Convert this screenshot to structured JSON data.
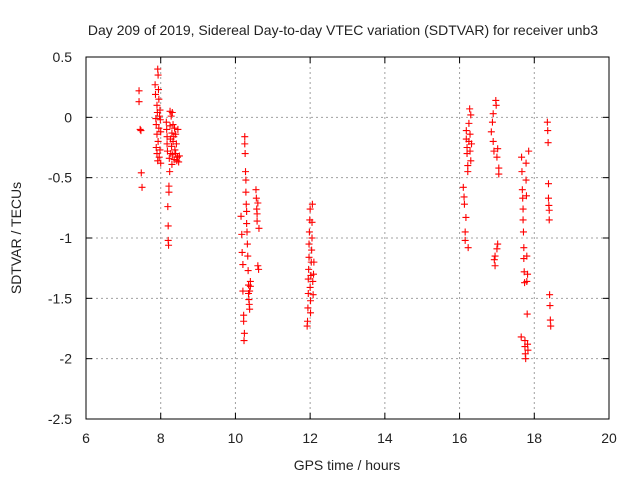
{
  "chart_data": {
    "type": "scatter",
    "title": "Day 209 of 2019, Sidereal Day-to-day VTEC variation (SDTVAR) for receiver unb3",
    "xlabel": "GPS time / hours",
    "ylabel": "SDTVAR / TECUs",
    "xlim": [
      6,
      20
    ],
    "ylim": [
      -2.5,
      0.5
    ],
    "xticks": [
      6,
      8,
      10,
      12,
      14,
      16,
      18,
      20
    ],
    "xtick_labels": [
      "6",
      "8",
      "10",
      "12",
      "14",
      "16",
      "18",
      "20"
    ],
    "yticks": [
      0.5,
      0,
      -0.5,
      -1,
      -1.5,
      -2,
      -2.5
    ],
    "ytick_labels": [
      "0.5",
      "0",
      "-0.5",
      "-1",
      "-1.5",
      "-2",
      "-2.5"
    ],
    "grid": true,
    "marker": "plus",
    "color": "#ff0000",
    "series": [
      {
        "name": "SDTVAR",
        "x": [
          7.42,
          7.42,
          7.45,
          7.47,
          7.48,
          7.5,
          7.85,
          7.86,
          7.87,
          7.88,
          7.88,
          7.9,
          7.9,
          7.9,
          7.91,
          7.92,
          7.92,
          7.93,
          7.93,
          7.94,
          7.95,
          7.95,
          7.96,
          7.97,
          7.98,
          7.98,
          7.99,
          8.0,
          8.0,
          8.15,
          8.16,
          8.17,
          8.17,
          8.18,
          8.19,
          8.2,
          8.2,
          8.21,
          8.22,
          8.22,
          8.23,
          8.24,
          8.25,
          8.25,
          8.26,
          8.27,
          8.28,
          8.29,
          8.3,
          8.3,
          8.31,
          8.32,
          8.33,
          8.33,
          8.35,
          8.36,
          8.37,
          8.38,
          8.4,
          8.4,
          8.42,
          8.43,
          8.45,
          8.46,
          8.48,
          8.5,
          10.15,
          10.17,
          10.18,
          10.2,
          10.2,
          10.22,
          10.22,
          10.23,
          10.24,
          10.25,
          10.25,
          10.26,
          10.27,
          10.28,
          10.28,
          10.29,
          10.3,
          10.3,
          10.31,
          10.32,
          10.33,
          10.34,
          10.35,
          10.35,
          10.36,
          10.37,
          10.38,
          10.38,
          10.4,
          10.4,
          10.55,
          10.56,
          10.57,
          10.58,
          10.58,
          10.6,
          10.6,
          10.62,
          10.63,
          11.92,
          11.93,
          11.94,
          11.95,
          11.95,
          11.96,
          11.97,
          11.97,
          11.98,
          11.99,
          12.0,
          12.0,
          12.01,
          12.01,
          12.02,
          12.03,
          12.04,
          12.05,
          12.05,
          12.06,
          12.07,
          12.08,
          12.09,
          12.1,
          16.1,
          16.12,
          16.13,
          16.15,
          16.15,
          16.17,
          16.18,
          16.18,
          16.2,
          16.2,
          16.22,
          16.22,
          16.23,
          16.25,
          16.25,
          16.27,
          16.28,
          16.28,
          16.3,
          16.3,
          16.32,
          16.85,
          16.88,
          16.9,
          16.9,
          16.92,
          16.93,
          16.95,
          16.95,
          16.97,
          16.98,
          17.0,
          17.0,
          17.02,
          17.02,
          17.05,
          17.05,
          17.65,
          17.66,
          17.67,
          17.68,
          17.69,
          17.7,
          17.7,
          17.71,
          17.72,
          17.72,
          17.73,
          17.74,
          17.75,
          17.75,
          17.76,
          17.77,
          17.78,
          17.78,
          17.79,
          17.8,
          17.8,
          17.81,
          17.82,
          17.82,
          17.83,
          17.85,
          18.35,
          18.36,
          18.37,
          18.38,
          18.38,
          18.39,
          18.4,
          18.4,
          18.41,
          18.42,
          18.43,
          18.44
        ],
        "y": [
          0.22,
          0.13,
          -0.1,
          -0.11,
          -0.46,
          -0.58,
          0.27,
          0.19,
          -0.01,
          -0.06,
          -0.25,
          0.1,
          -0.14,
          -0.3,
          0.04,
          -0.36,
          0.4,
          0.35,
          -0.2,
          0.23,
          -0.09,
          0.15,
          -0.33,
          0.01,
          -0.27,
          0.06,
          -0.02,
          -0.38,
          -0.12,
          -0.04,
          -0.1,
          -0.16,
          -0.22,
          -0.28,
          -0.74,
          -0.9,
          -1.02,
          -1.06,
          -0.57,
          -0.62,
          -0.34,
          -0.45,
          0.05,
          -0.07,
          -0.18,
          -0.3,
          0.01,
          -0.24,
          -0.39,
          -0.13,
          0.04,
          -0.31,
          -0.06,
          -0.2,
          -0.16,
          -0.35,
          -0.09,
          -0.27,
          -0.3,
          -0.14,
          -0.22,
          -0.36,
          -0.33,
          -0.1,
          -0.37,
          -0.32,
          -0.82,
          -0.97,
          -1.12,
          -1.22,
          -1.44,
          -1.64,
          -1.69,
          -1.85,
          -1.79,
          -0.16,
          -0.22,
          -0.3,
          -0.45,
          -0.52,
          -0.62,
          -0.72,
          -0.78,
          -0.88,
          -0.95,
          -1.05,
          -1.15,
          -1.27,
          -1.39,
          -1.46,
          -1.51,
          -1.55,
          -1.44,
          -1.59,
          -1.36,
          -1.4,
          -0.6,
          -0.67,
          -0.76,
          -0.8,
          -0.86,
          -0.71,
          -1.23,
          -1.26,
          -0.92,
          -1.73,
          -1.69,
          -1.58,
          -1.46,
          -1.34,
          -1.26,
          -1.16,
          -1.05,
          -0.95,
          -0.85,
          -0.76,
          -1.41,
          -1.52,
          -1.62,
          -1.31,
          -1.2,
          -1.1,
          -1.0,
          -0.87,
          -0.72,
          -1.36,
          -1.47,
          -1.3,
          -1.2,
          -0.58,
          -0.66,
          -0.72,
          -0.95,
          -1.02,
          -0.83,
          -0.11,
          -0.18,
          -0.25,
          -0.3,
          -0.4,
          -0.45,
          -1.08,
          -0.2,
          -0.05,
          0.07,
          -0.28,
          -0.14,
          -0.36,
          0.02,
          -0.22,
          -0.12,
          -0.04,
          0.03,
          -0.2,
          -0.28,
          -1.18,
          -1.23,
          -1.15,
          0.14,
          0.1,
          -1.09,
          -0.33,
          -1.05,
          -0.26,
          -0.42,
          -0.47,
          -1.82,
          -0.33,
          -0.45,
          -0.6,
          -0.67,
          -0.76,
          -0.85,
          -0.95,
          -1.08,
          -1.17,
          -1.28,
          -1.37,
          -1.85,
          -1.9,
          -1.96,
          -2.0,
          -0.38,
          -0.52,
          -0.65,
          -1.15,
          -1.36,
          -1.63,
          -1.3,
          -1.88,
          -1.93,
          -0.28,
          -0.04,
          -0.11,
          -0.21,
          -0.55,
          -0.67,
          -0.73,
          -0.77,
          -0.85,
          -1.47,
          -1.56,
          -1.68,
          -1.73
        ]
      }
    ]
  }
}
